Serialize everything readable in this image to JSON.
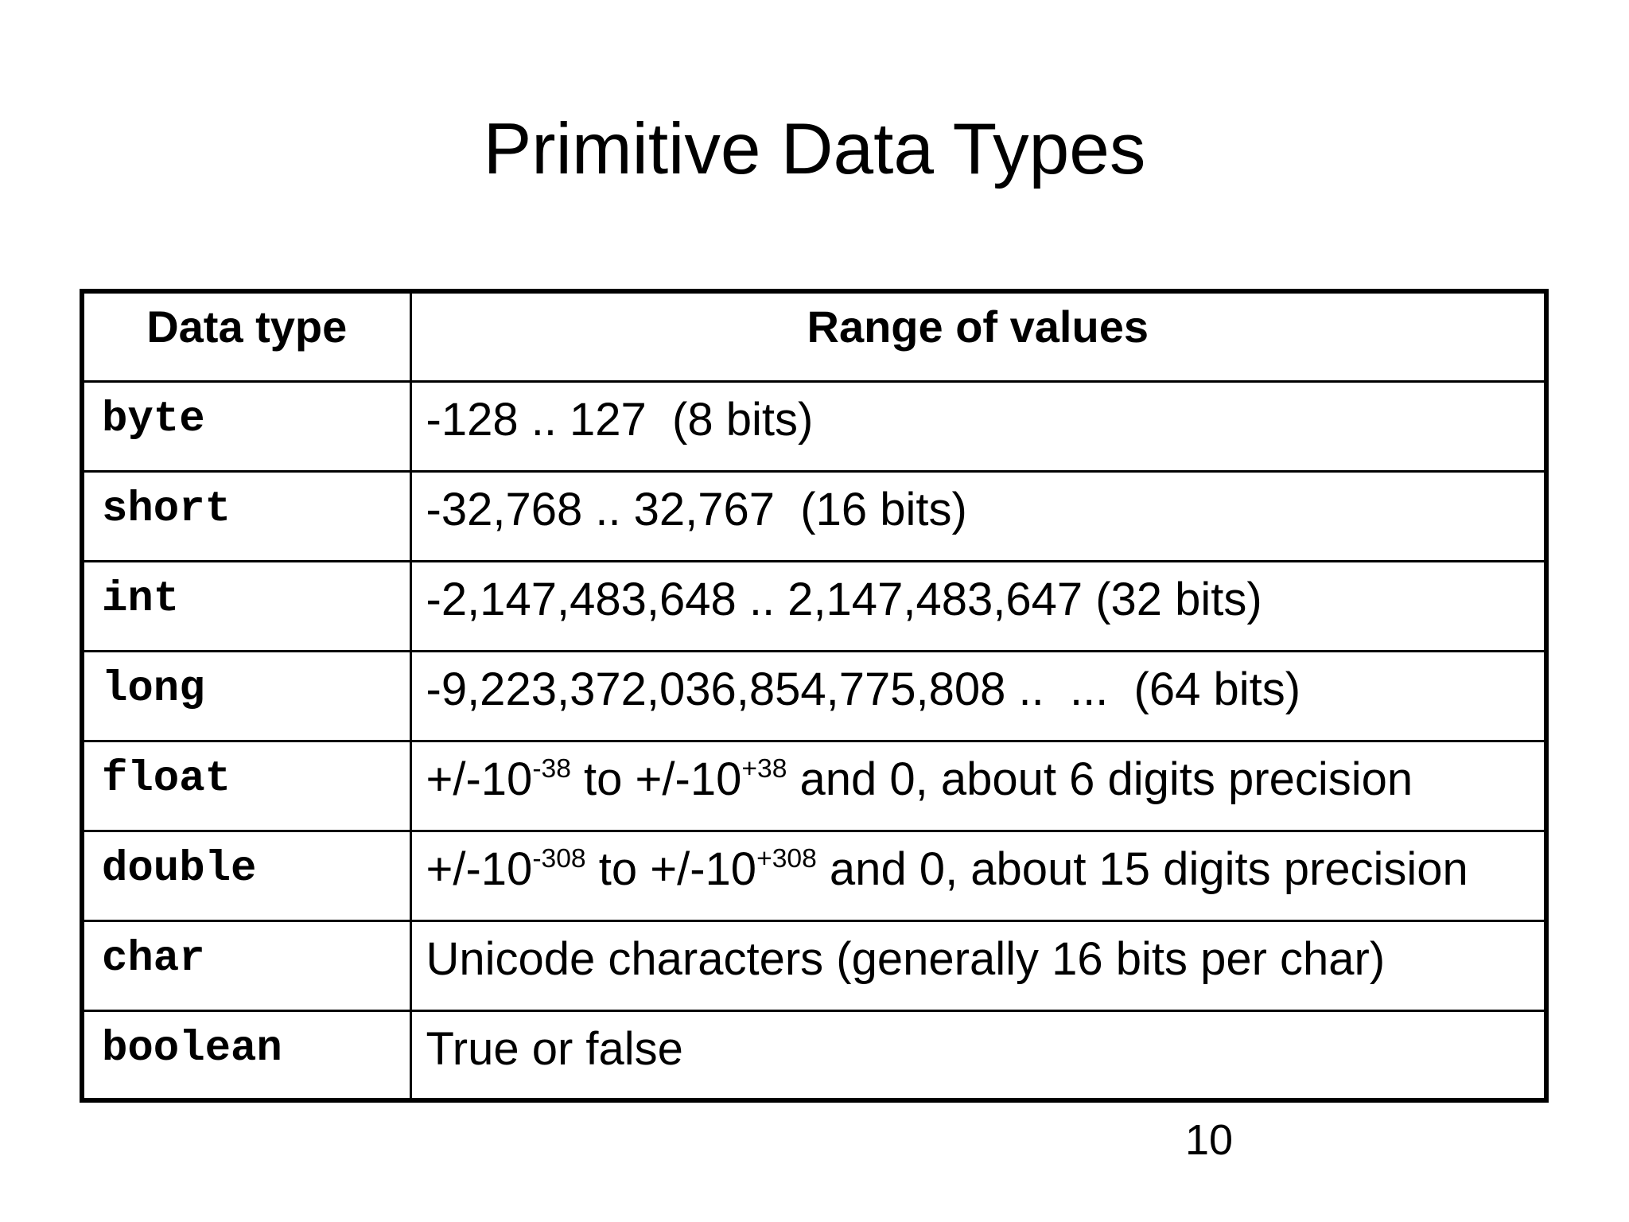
{
  "slide": {
    "title": "Primitive Data Types",
    "page_number": "10"
  },
  "table": {
    "headers": [
      "Data type",
      "Range of values"
    ],
    "rows": [
      {
        "type": "byte",
        "range": [
          {
            "t": "-128 .. 127  (8 bits)"
          }
        ]
      },
      {
        "type": "short",
        "range": [
          {
            "t": "-32,768 .. 32,767  (16 bits)"
          }
        ]
      },
      {
        "type": "int",
        "range": [
          {
            "t": "-2,147,483,648 .. 2,147,483,647 (32 bits)"
          }
        ]
      },
      {
        "type": "long",
        "range": [
          {
            "t": "-9,223,372,036,854,775,808 ..  ...  (64 bits)"
          }
        ]
      },
      {
        "type": "float",
        "range": [
          {
            "t": "+/-10"
          },
          {
            "t": "-38",
            "sup": true
          },
          {
            "t": " to +/-10"
          },
          {
            "t": "+38",
            "sup": true
          },
          {
            "t": " and 0, about 6 digits precision"
          }
        ]
      },
      {
        "type": "double",
        "range": [
          {
            "t": "+/-10"
          },
          {
            "t": "-308",
            "sup": true
          },
          {
            "t": " to +/-10"
          },
          {
            "t": "+308",
            "sup": true
          },
          {
            "t": " and 0, about 15 digits precision"
          }
        ]
      },
      {
        "type": "char",
        "range": [
          {
            "t": "Unicode characters (generally 16 bits per char)"
          }
        ]
      },
      {
        "type": "boolean",
        "range": [
          {
            "t": "True or false"
          }
        ]
      }
    ]
  },
  "colors": {
    "background": "#ffffff",
    "text": "#000000",
    "table_border": "#000000"
  }
}
